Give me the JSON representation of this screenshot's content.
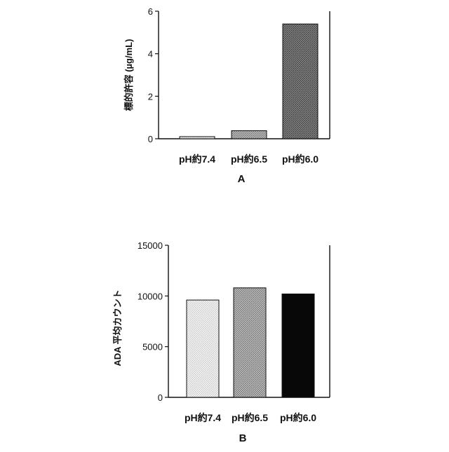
{
  "chart_data": [
    {
      "type": "bar",
      "panel_label": "A",
      "ylabel": "標的許容 (µg/mL)",
      "categories": [
        "pH約7.4",
        "pH約6.5",
        "pH約6.0"
      ],
      "values": [
        0.1,
        0.38,
        5.4
      ],
      "ylim": [
        0,
        6
      ],
      "yticks": [
        0,
        2,
        4,
        6
      ],
      "bar_fills": [
        "hatch-light",
        "hatch-medium",
        "hatch-dark"
      ],
      "grid": false
    },
    {
      "type": "bar",
      "panel_label": "B",
      "ylabel": "ADA 平均カウント",
      "categories": [
        "pH約7.4",
        "pH約6.5",
        "pH約6.0"
      ],
      "values": [
        9600,
        10800,
        10200
      ],
      "ylim": [
        0,
        15000
      ],
      "yticks": [
        0,
        5000,
        10000,
        15000
      ],
      "bar_fills": [
        "hatch-light",
        "hatch-medium",
        "solid-black"
      ],
      "grid": false
    }
  ]
}
